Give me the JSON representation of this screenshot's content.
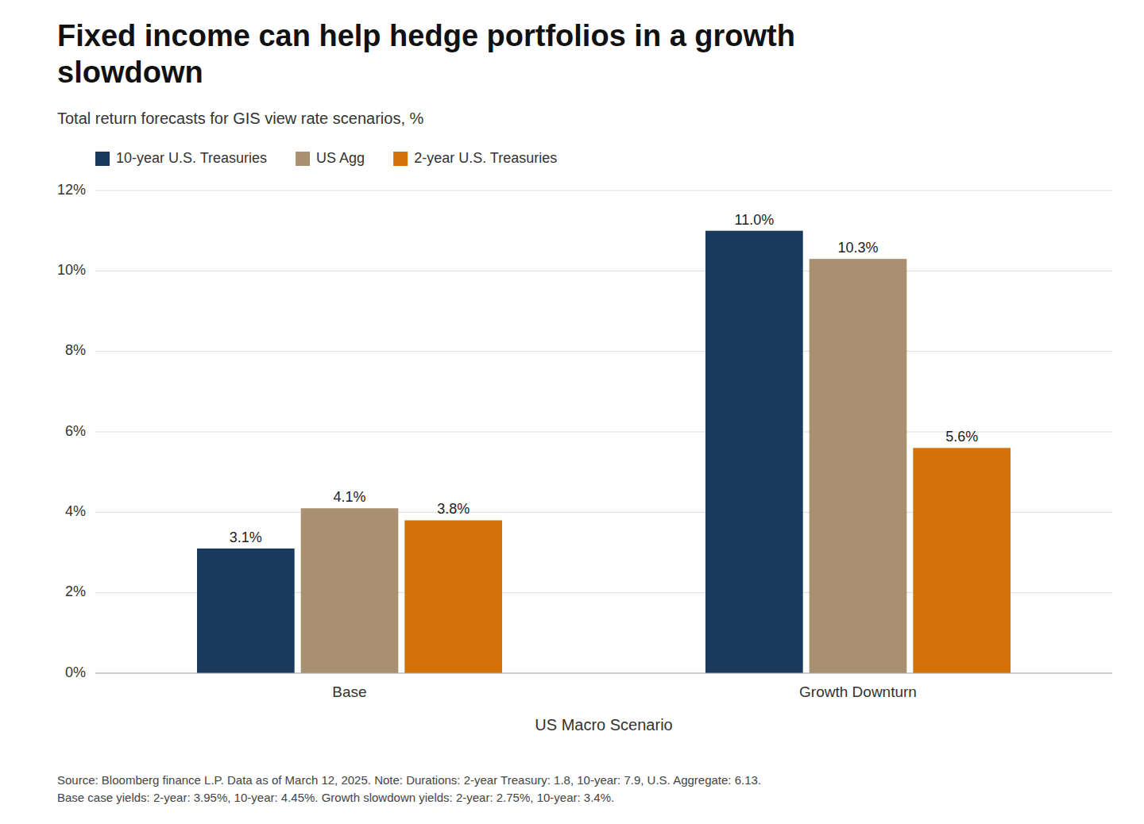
{
  "chart_data": {
    "type": "bar",
    "title": "Fixed income can help hedge portfolios in a growth\nslowdown",
    "subtitle": "Total return forecasts for GIS view rate scenarios, %",
    "xlabel": "US Macro Scenario",
    "footnote": "Source: Bloomberg finance L.P. Data as of March 12, 2025. Note: Durations: 2-year Treasury: 1.8, 10-year: 7.9, U.S. Aggregate: 6.13.\nBase case yields: 2-year: 3.95%, 10-year: 4.45%. Growth slowdown yields: 2-year: 2.75%, 10-year: 3.4%.",
    "categories": [
      "Base",
      "Growth Downturn"
    ],
    "series": [
      {
        "name": "10-year U.S. Treasuries",
        "color": "#1a3a5c",
        "values": [
          3.1,
          11.0
        ],
        "value_labels": [
          "3.1%",
          "11.0%"
        ]
      },
      {
        "name": "US Agg",
        "color": "#a89070",
        "values": [
          4.1,
          10.3
        ],
        "value_labels": [
          "4.1%",
          "10.3%"
        ]
      },
      {
        "name": "2-year U.S. Treasuries",
        "color": "#d4720a",
        "values": [
          3.8,
          5.6
        ],
        "value_labels": [
          "3.8%",
          "5.6%"
        ]
      }
    ],
    "ylim": [
      0,
      12
    ],
    "yticks": [
      {
        "value": 0,
        "label": "0%"
      },
      {
        "value": 2,
        "label": "2%"
      },
      {
        "value": 4,
        "label": "4%"
      },
      {
        "value": 6,
        "label": "6%"
      },
      {
        "value": 8,
        "label": "8%"
      },
      {
        "value": 10,
        "label": "10%"
      },
      {
        "value": 12,
        "label": "12%"
      }
    ],
    "grid": true,
    "legend": "top",
    "data_labels": true
  }
}
